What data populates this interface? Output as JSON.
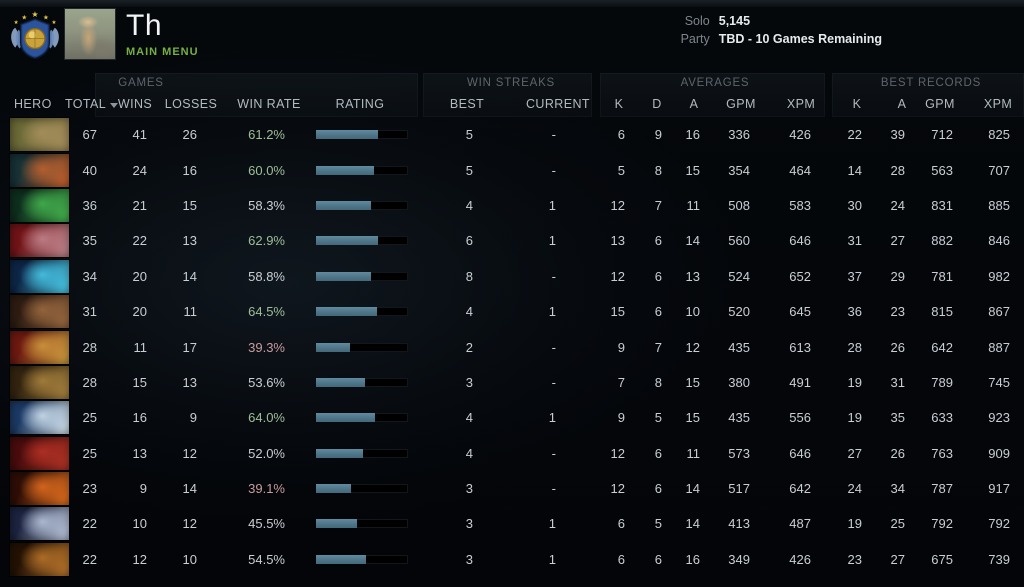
{
  "profile": {
    "name": "Th",
    "menu_label": "MAIN MENU",
    "rank": {
      "solo_label": "Solo",
      "solo_value": "5,145",
      "party_label": "Party",
      "party_value": "TBD - 10 Games Remaining"
    }
  },
  "table": {
    "group_headers": {
      "games": "GAMES",
      "win_streaks": "WIN STREAKS",
      "averages": "AVERAGES",
      "best_records": "BEST RECORDS"
    },
    "column_headers": {
      "hero": "HERO",
      "total": "TOTAL",
      "wins": "WINS",
      "losses": "LOSSES",
      "win_rate": "WIN RATE",
      "rating": "RATING",
      "best": "BEST",
      "current": "CURRENT",
      "k": "K",
      "d": "D",
      "a": "A",
      "gpm": "GPM",
      "xpm": "XPM",
      "br_k": "K",
      "br_a": "A",
      "br_gpm": "GPM",
      "br_xpm": "XPM"
    },
    "rows": [
      {
        "icon_colors": [
          "#6b6a38",
          "#a8905c"
        ],
        "total": "67",
        "wins": "41",
        "losses": "26",
        "win_rate": "61.2%",
        "wr_class": "pos",
        "rating_width": 62,
        "best": "5",
        "current": "-",
        "k": "6",
        "d": "9",
        "a": "16",
        "gpm": "336",
        "xpm": "426",
        "bk": "22",
        "ba": "39",
        "bgpm": "712",
        "bxpm": "825"
      },
      {
        "icon_colors": [
          "#173236",
          "#c2622e"
        ],
        "total": "40",
        "wins": "24",
        "losses": "16",
        "win_rate": "60.0%",
        "wr_class": "pos",
        "rating_width": 58,
        "best": "5",
        "current": "-",
        "k": "5",
        "d": "8",
        "a": "15",
        "gpm": "354",
        "xpm": "464",
        "bk": "14",
        "ba": "28",
        "bgpm": "563",
        "bxpm": "707"
      },
      {
        "icon_colors": [
          "#0e2f1e",
          "#44b24e"
        ],
        "total": "36",
        "wins": "21",
        "losses": "15",
        "win_rate": "58.3%",
        "wr_class": "neu",
        "rating_width": 55,
        "best": "4",
        "current": "1",
        "k": "12",
        "d": "7",
        "a": "11",
        "gpm": "508",
        "xpm": "583",
        "bk": "30",
        "ba": "24",
        "bgpm": "831",
        "bxpm": "885"
      },
      {
        "icon_colors": [
          "#721418",
          "#c2848c"
        ],
        "total": "35",
        "wins": "22",
        "losses": "13",
        "win_rate": "62.9%",
        "wr_class": "pos",
        "rating_width": 62,
        "best": "6",
        "current": "1",
        "k": "13",
        "d": "6",
        "a": "14",
        "gpm": "560",
        "xpm": "646",
        "bk": "31",
        "ba": "27",
        "bgpm": "882",
        "bxpm": "846"
      },
      {
        "icon_colors": [
          "#0d2748",
          "#49c8e8"
        ],
        "total": "34",
        "wins": "20",
        "losses": "14",
        "win_rate": "58.8%",
        "wr_class": "neu",
        "rating_width": 55,
        "best": "8",
        "current": "-",
        "k": "12",
        "d": "6",
        "a": "13",
        "gpm": "524",
        "xpm": "652",
        "bk": "37",
        "ba": "29",
        "bgpm": "781",
        "bxpm": "982"
      },
      {
        "icon_colors": [
          "#2e1c12",
          "#9c6a40"
        ],
        "total": "31",
        "wins": "20",
        "losses": "11",
        "win_rate": "64.5%",
        "wr_class": "pos",
        "rating_width": 61,
        "best": "4",
        "current": "1",
        "k": "15",
        "d": "6",
        "a": "10",
        "gpm": "520",
        "xpm": "645",
        "bk": "36",
        "ba": "23",
        "bgpm": "815",
        "bxpm": "867"
      },
      {
        "icon_colors": [
          "#6e1a10",
          "#d09a3e"
        ],
        "total": "28",
        "wins": "11",
        "losses": "17",
        "win_rate": "39.3%",
        "wr_class": "neg",
        "rating_width": 34,
        "best": "2",
        "current": "-",
        "k": "9",
        "d": "7",
        "a": "12",
        "gpm": "435",
        "xpm": "613",
        "bk": "28",
        "ba": "26",
        "bgpm": "642",
        "bxpm": "887"
      },
      {
        "icon_colors": [
          "#33240f",
          "#a8823e"
        ],
        "total": "28",
        "wins": "15",
        "losses": "13",
        "win_rate": "53.6%",
        "wr_class": "neu",
        "rating_width": 49,
        "best": "3",
        "current": "-",
        "k": "7",
        "d": "8",
        "a": "15",
        "gpm": "380",
        "xpm": "491",
        "bk": "19",
        "ba": "31",
        "bgpm": "789",
        "bxpm": "745"
      },
      {
        "icon_colors": [
          "#1c3a66",
          "#cfe0ee"
        ],
        "total": "25",
        "wins": "16",
        "losses": "9",
        "win_rate": "64.0%",
        "wr_class": "pos",
        "rating_width": 59,
        "best": "4",
        "current": "1",
        "k": "9",
        "d": "5",
        "a": "15",
        "gpm": "435",
        "xpm": "556",
        "bk": "19",
        "ba": "35",
        "bgpm": "633",
        "bxpm": "923"
      },
      {
        "icon_colors": [
          "#4a0c0c",
          "#b43226"
        ],
        "total": "25",
        "wins": "13",
        "losses": "12",
        "win_rate": "52.0%",
        "wr_class": "neu",
        "rating_width": 47,
        "best": "4",
        "current": "-",
        "k": "12",
        "d": "6",
        "a": "11",
        "gpm": "573",
        "xpm": "646",
        "bk": "27",
        "ba": "26",
        "bgpm": "763",
        "bxpm": "909"
      },
      {
        "icon_colors": [
          "#2e0e06",
          "#e06c1e"
        ],
        "total": "23",
        "wins": "9",
        "losses": "14",
        "win_rate": "39.1%",
        "wr_class": "neg",
        "rating_width": 35,
        "best": "3",
        "current": "-",
        "k": "12",
        "d": "6",
        "a": "14",
        "gpm": "517",
        "xpm": "642",
        "bk": "24",
        "ba": "34",
        "bgpm": "787",
        "bxpm": "917"
      },
      {
        "icon_colors": [
          "#1c2440",
          "#b8c4dc"
        ],
        "total": "22",
        "wins": "10",
        "losses": "12",
        "win_rate": "45.5%",
        "wr_class": "neu",
        "rating_width": 41,
        "best": "3",
        "current": "1",
        "k": "6",
        "d": "5",
        "a": "14",
        "gpm": "413",
        "xpm": "487",
        "bk": "19",
        "ba": "25",
        "bgpm": "792",
        "bxpm": "792"
      },
      {
        "icon_colors": [
          "#241204",
          "#b8742a"
        ],
        "total": "22",
        "wins": "12",
        "losses": "10",
        "win_rate": "54.5%",
        "wr_class": "neu",
        "rating_width": 50,
        "best": "3",
        "current": "1",
        "k": "6",
        "d": "6",
        "a": "16",
        "gpm": "349",
        "xpm": "426",
        "bk": "23",
        "ba": "27",
        "bgpm": "675",
        "bxpm": "739"
      }
    ]
  },
  "colors": {
    "menu_green": "#76b043",
    "win_rate_positive": "#9fbe98",
    "win_rate_negative": "#c79c9c",
    "win_rate_neutral": "#c9ced3",
    "rating_bar_fill": "#4e7588",
    "rating_bar_track": "#000000"
  }
}
